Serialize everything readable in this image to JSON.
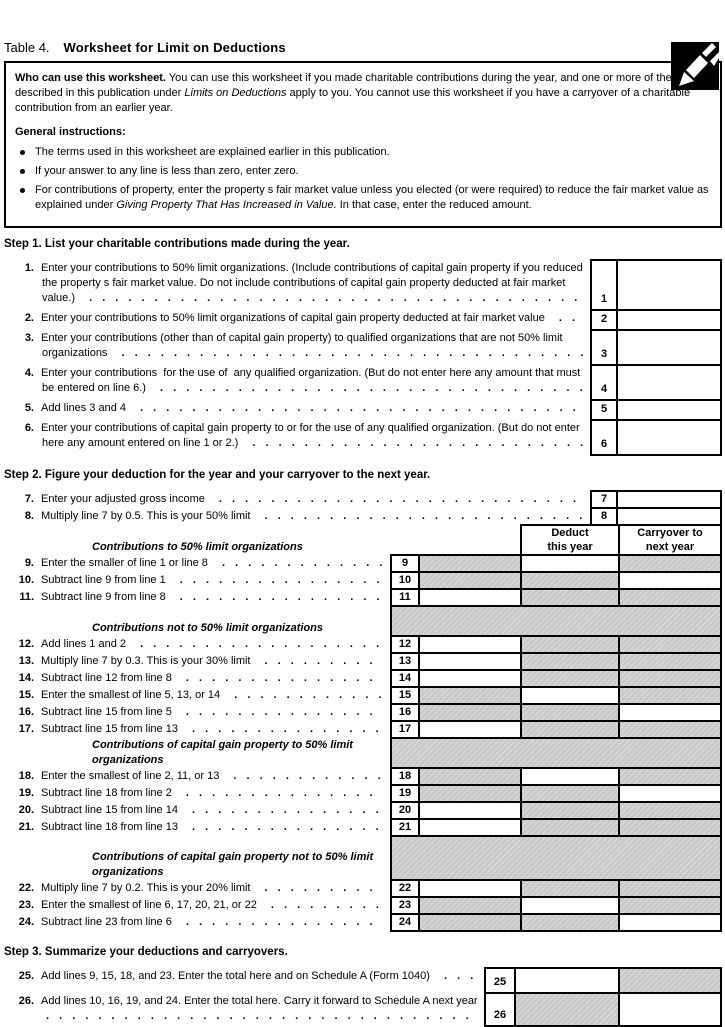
{
  "title": {
    "prefix": "Table 4.",
    "main": "Worksheet for Limit on Deductions"
  },
  "intro": {
    "who": [
      {
        "t": "Who can use this worksheet.",
        "b": true
      },
      {
        "t": " You can use this worksheet if you made charitable contributions during the year, and one or more of the limits described in this publication under "
      },
      {
        "t": "Limits on Deductions",
        "i": true
      },
      {
        "t": " apply to you. You cannot use this worksheet if you have a carryover of a charitable contribution from an earlier year."
      }
    ],
    "general_heading": "General instructions:",
    "bullets": [
      [
        {
          "t": "The terms used in this worksheet are explained earlier in this publication."
        }
      ],
      [
        {
          "t": "If your answer to any line is less than zero, enter zero."
        }
      ],
      [
        {
          "t": "For contributions of property, enter the property s fair market value unless you elected (or were required) to reduce the fair market value as explained under "
        },
        {
          "t": "Giving Property That Has Increased in Value.",
          "i": true
        },
        {
          "t": " In that case, enter the reduced amount."
        }
      ]
    ]
  },
  "steps": {
    "step1": "Step 1. List your charitable contributions made during the year.",
    "step2": "Step 2. Figure your deduction for the year and your carryover to the next year.",
    "step3": "Step 3. Summarize your deductions and carryovers."
  },
  "columns": {
    "deduct1": "Deduct",
    "deduct2": "this year",
    "carry1": "Carryover to",
    "carry2": "next year"
  },
  "step1_lines": [
    {
      "num": "1.",
      "box": "1",
      "lines": 3,
      "value": "",
      "text": "Enter your contributions to 50% limit organizations. (Include contributions of capital gain property if you reduced the property s fair market value. Do not include contributions of capital gain property deducted at fair market value.)"
    },
    {
      "num": "2.",
      "box": "2",
      "lines": 1,
      "value": "",
      "text": "Enter your contributions to 50% limit organizations of capital gain property deducted at fair market value"
    },
    {
      "num": "3.",
      "box": "3",
      "lines": 2,
      "value": "",
      "text": "Enter your contributions (other than of capital gain property) to qualified organizations that are not 50% limit organizations"
    },
    {
      "num": "4.",
      "box": "4",
      "lines": 2,
      "value": "",
      "text": "Enter your contributions  for the use of  any qualified organization. (But do not enter here any amount that must be entered on line 6.)"
    },
    {
      "num": "5.",
      "box": "5",
      "lines": 1,
      "value": "",
      "text": "Add lines 3 and 4"
    },
    {
      "num": "6.",
      "box": "6",
      "lines": 2,
      "value": "",
      "text": "Enter your contributions of capital gain property to or for the use of any qualified organization. (But do not enter here any amount entered on line 1 or 2.)"
    }
  ],
  "agi_lines": [
    {
      "num": "7.",
      "box": "7",
      "value": "",
      "text": "Enter your adjusted gross income"
    },
    {
      "num": "8.",
      "box": "8",
      "value": "",
      "text": "Multiply line 7 by 0.5. This is your 50% limit"
    }
  ],
  "step2_sections": [
    {
      "heading": "Contributions to 50% limit organizations",
      "heading_lines": 1,
      "rows": [
        {
          "num": "9.",
          "box": "9",
          "text": "Enter the smaller of line 1 or line 8",
          "shade": [
            "g",
            "w",
            "g"
          ],
          "values": {
            "mid": "",
            "deduct": "",
            "carry": ""
          }
        },
        {
          "num": "10.",
          "box": "10",
          "text": "Subtract line 9 from line 1",
          "shade": [
            "g",
            "g",
            "w"
          ],
          "values": {
            "mid": "",
            "deduct": "",
            "carry": ""
          }
        },
        {
          "num": "11.",
          "box": "11",
          "text": "Subtract line 9 from line 8",
          "shade": [
            "w",
            "g",
            "g"
          ],
          "values": {
            "mid": "",
            "deduct": "",
            "carry": ""
          }
        }
      ]
    },
    {
      "heading": "Contributions not to 50% limit organizations",
      "heading_lines": 1,
      "rows": [
        {
          "num": "12.",
          "box": "12",
          "text": "Add lines 1 and 2",
          "shade": [
            "w",
            "g",
            "g"
          ],
          "values": {
            "mid": "",
            "deduct": "",
            "carry": ""
          }
        },
        {
          "num": "13.",
          "box": "13",
          "text": "Multiply line 7 by 0.3. This is your 30% limit",
          "shade": [
            "w",
            "g",
            "g"
          ],
          "values": {
            "mid": "",
            "deduct": "",
            "carry": ""
          }
        },
        {
          "num": "14.",
          "box": "14",
          "text": "Subtract line 12 from line 8",
          "shade": [
            "w",
            "g",
            "g"
          ],
          "values": {
            "mid": "",
            "deduct": "",
            "carry": ""
          }
        },
        {
          "num": "15.",
          "box": "15",
          "text": "Enter the smallest of line 5, 13, or 14",
          "shade": [
            "g",
            "w",
            "g"
          ],
          "values": {
            "mid": "",
            "deduct": "",
            "carry": ""
          }
        },
        {
          "num": "16.",
          "box": "16",
          "text": "Subtract line 15 from line 5",
          "shade": [
            "g",
            "g",
            "w"
          ],
          "values": {
            "mid": "",
            "deduct": "",
            "carry": ""
          }
        },
        {
          "num": "17.",
          "box": "17",
          "text": "Subtract line 15 from line 13",
          "shade": [
            "w",
            "g",
            "g"
          ],
          "values": {
            "mid": "",
            "deduct": "",
            "carry": ""
          }
        }
      ]
    },
    {
      "heading": "Contributions of capital gain property to 50% limit organizations",
      "heading_lines": 1,
      "rows": [
        {
          "num": "18.",
          "box": "18",
          "text": "Enter the smallest of line 2, 11, or 13",
          "shade": [
            "g",
            "w",
            "g"
          ],
          "values": {
            "mid": "",
            "deduct": "",
            "carry": ""
          }
        },
        {
          "num": "19.",
          "box": "19",
          "text": "Subtract line 18 from line 2",
          "shade": [
            "g",
            "g",
            "w"
          ],
          "values": {
            "mid": "",
            "deduct": "",
            "carry": ""
          }
        },
        {
          "num": "20.",
          "box": "20",
          "text": "Subtract line 15 from line 14",
          "shade": [
            "w",
            "g",
            "g"
          ],
          "values": {
            "mid": "",
            "deduct": "",
            "carry": ""
          }
        },
        {
          "num": "21.",
          "box": "21",
          "text": "Subtract line 18 from line 13",
          "shade": [
            "w",
            "g",
            "g"
          ],
          "values": {
            "mid": "",
            "deduct": "",
            "carry": ""
          }
        }
      ]
    },
    {
      "heading": "Contributions of capital gain property not to 50% limit organizations",
      "heading_lines": 2,
      "rows": [
        {
          "num": "22.",
          "box": "22",
          "text": "Multiply line 7 by 0.2. This is your 20% limit",
          "shade": [
            "w",
            "g",
            "g"
          ],
          "values": {
            "mid": "",
            "deduct": "",
            "carry": ""
          }
        },
        {
          "num": "23.",
          "box": "23",
          "text": "Enter the smallest of line 6, 17, 20, 21, or 22",
          "shade": [
            "g",
            "w",
            "g"
          ],
          "values": {
            "mid": "",
            "deduct": "",
            "carry": ""
          }
        },
        {
          "num": "24.",
          "box": "24",
          "text": "Subtract line 23 from line 6",
          "shade": [
            "g",
            "g",
            "w"
          ],
          "values": {
            "mid": "",
            "deduct": "",
            "carry": ""
          }
        }
      ]
    }
  ],
  "step3_lines": [
    {
      "num": "25.",
      "box": "25",
      "lines": 1,
      "text": "Add lines 9, 15, 18, and 23. Enter the total here and on Schedule A (Form 1040)",
      "shade": [
        "w",
        "g"
      ],
      "values": {
        "deduct": "",
        "carry": ""
      }
    },
    {
      "num": "26.",
      "box": "26",
      "lines": 2,
      "text": "Add lines 10, 16, 19, and 24. Enter the total here. Carry it forward to Schedule A next year",
      "shade": [
        "g",
        "w"
      ],
      "values": {
        "deduct": "",
        "carry": ""
      }
    }
  ]
}
